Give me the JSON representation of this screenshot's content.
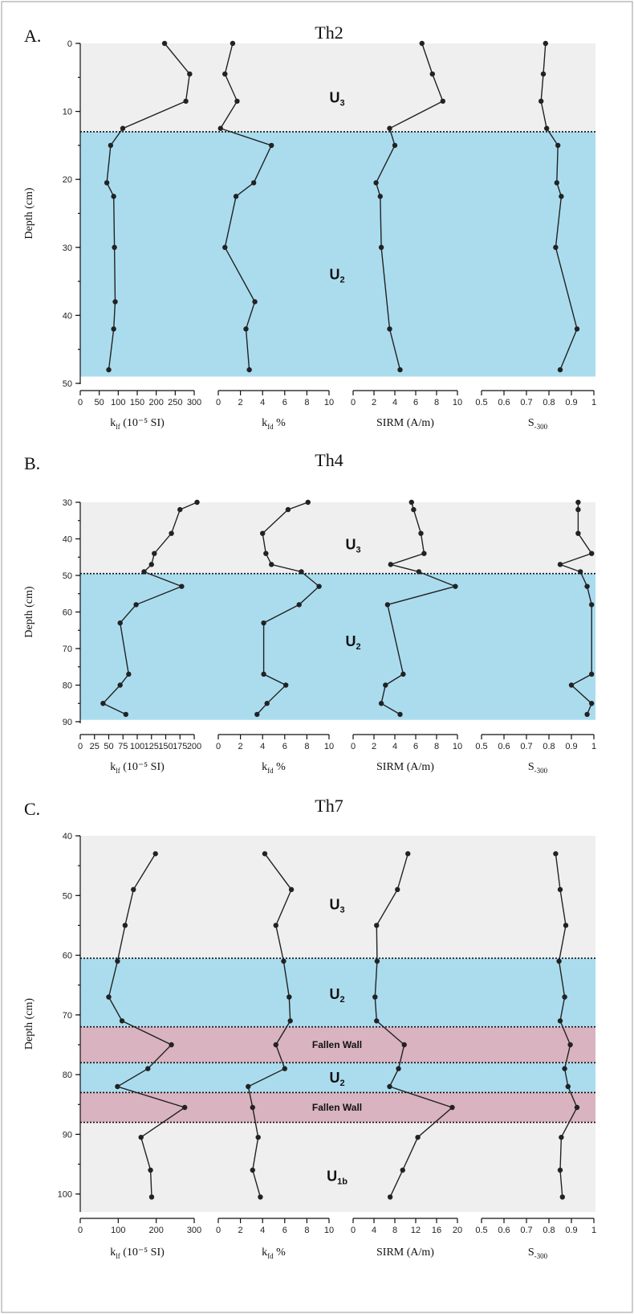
{
  "chart_data": [
    {
      "type": "line",
      "panel": "A.",
      "title": "Th2",
      "ylabel": "Depth (cm)",
      "ylim": [
        0,
        50
      ],
      "yticks": [
        "0",
        "10",
        "20",
        "30",
        "40",
        "50"
      ],
      "units": [
        {
          "label": "U",
          "sub": "3",
          "depth": 8
        },
        {
          "label": "U",
          "sub": "2",
          "depth": 34
        }
      ],
      "bands": [
        {
          "from": 0,
          "to": 13,
          "color": "#efefef"
        },
        {
          "from": 13,
          "to": 49,
          "color": "#aadcee"
        }
      ],
      "boundaries": [
        13
      ],
      "band_labels": [],
      "series": [
        {
          "xlabel": "k",
          "xlabel_sub": "lf",
          "xlabel_tail": " (10⁻⁵ SI)",
          "xlim": [
            0,
            300
          ],
          "xticks": [
            "0",
            "50",
            "100",
            "150",
            "200",
            "250",
            "300"
          ],
          "tick_values": [
            0,
            50,
            100,
            150,
            200,
            250,
            300
          ],
          "depth": [
            0,
            4.5,
            8.5,
            12.5,
            15,
            20.5,
            22.5,
            30,
            38,
            42,
            48
          ],
          "x": [
            222,
            288,
            278,
            112,
            80,
            70,
            88,
            90,
            92,
            88,
            75
          ]
        },
        {
          "xlabel": "k",
          "xlabel_sub": "fd",
          "xlabel_tail": " %",
          "xlim": [
            0,
            10
          ],
          "xticks": [
            "0",
            "2",
            "4",
            "6",
            "8",
            "10"
          ],
          "tick_values": [
            0,
            2,
            4,
            6,
            8,
            10
          ],
          "depth": [
            0,
            4.5,
            8.5,
            12.5,
            15,
            20.5,
            22.5,
            30,
            38,
            42,
            48
          ],
          "x": [
            1.3,
            0.6,
            1.7,
            0.2,
            4.8,
            3.2,
            1.6,
            0.6,
            3.3,
            2.5,
            2.8
          ]
        },
        {
          "xlabel": "SIRM",
          "xlabel_sub": "",
          "xlabel_tail": " (A/m)",
          "xlim": [
            0,
            10
          ],
          "xticks": [
            "0",
            "2",
            "4",
            "6",
            "8",
            "10"
          ],
          "tick_values": [
            0,
            2,
            4,
            6,
            8,
            10
          ],
          "depth": [
            0,
            4.5,
            8.5,
            12.5,
            15,
            20.5,
            22.5,
            30,
            42,
            48
          ],
          "x": [
            6.6,
            7.6,
            8.6,
            3.5,
            4.0,
            2.2,
            2.6,
            2.7,
            3.5,
            4.5
          ]
        },
        {
          "xlabel": "S",
          "xlabel_sub": "-300",
          "xlabel_tail": "",
          "xlim": [
            0.5,
            1
          ],
          "xticks": [
            "0.5",
            "0.6",
            "0.7",
            "0.8",
            "0.9",
            "1"
          ],
          "tick_values": [
            0.5,
            0.6,
            0.7,
            0.8,
            0.9,
            1
          ],
          "depth": [
            0,
            4.5,
            8.5,
            12.5,
            15,
            20.5,
            22.5,
            30,
            42,
            48
          ],
          "x": [
            0.785,
            0.775,
            0.765,
            0.79,
            0.84,
            0.835,
            0.855,
            0.83,
            0.925,
            0.85
          ]
        }
      ]
    },
    {
      "type": "line",
      "panel": "B.",
      "title": "Th4",
      "ylabel": "Depth (cm)",
      "ylim": [
        30,
        90
      ],
      "yticks": [
        "30",
        "40",
        "50",
        "60",
        "70",
        "80",
        "90"
      ],
      "units": [
        {
          "label": "U",
          "sub": "3",
          "depth": 41.5
        },
        {
          "label": "U",
          "sub": "2",
          "depth": 68
        }
      ],
      "bands": [
        {
          "from": 30,
          "to": 49.5,
          "color": "#efefef"
        },
        {
          "from": 49.5,
          "to": 89.5,
          "color": "#aadcee"
        }
      ],
      "boundaries": [
        49.5
      ],
      "band_labels": [],
      "series": [
        {
          "xlabel": "k",
          "xlabel_sub": "lf",
          "xlabel_tail": " (10⁻⁵ SI)",
          "xlim": [
            0,
            200
          ],
          "xticks": [
            "0",
            "25",
            "50",
            "75",
            "100",
            "125",
            "150",
            "175",
            "200"
          ],
          "tick_values": [
            0,
            25,
            50,
            75,
            100,
            125,
            150,
            175,
            200
          ],
          "depth": [
            30,
            32,
            38.5,
            44,
            47,
            49,
            53,
            58,
            63,
            77,
            80,
            85,
            88
          ],
          "x": [
            205,
            175,
            160,
            130,
            125,
            112,
            178,
            98,
            70,
            85,
            70,
            40,
            80
          ]
        },
        {
          "xlabel": "k",
          "xlabel_sub": "fd",
          "xlabel_tail": " %",
          "xlim": [
            0,
            10
          ],
          "xticks": [
            "0",
            "2",
            "4",
            "6",
            "8",
            "10"
          ],
          "tick_values": [
            0,
            2,
            4,
            6,
            8,
            10
          ],
          "depth": [
            30,
            32,
            38.5,
            44,
            47,
            49,
            53,
            58,
            63,
            77,
            80,
            85,
            88
          ],
          "x": [
            8.1,
            6.3,
            4.0,
            4.3,
            4.8,
            7.5,
            9.1,
            7.3,
            4.1,
            4.1,
            6.1,
            4.4,
            3.5
          ]
        },
        {
          "xlabel": "SIRM",
          "xlabel_sub": "",
          "xlabel_tail": " (A/m)",
          "xlim": [
            0,
            10
          ],
          "xticks": [
            "0",
            "2",
            "4",
            "6",
            "8",
            "10"
          ],
          "tick_values": [
            0,
            2,
            4,
            6,
            8,
            10
          ],
          "depth": [
            30,
            32,
            38.5,
            44,
            47,
            49,
            53,
            58,
            77,
            80,
            85,
            88
          ],
          "x": [
            5.6,
            5.8,
            6.5,
            6.8,
            3.6,
            6.3,
            9.8,
            3.3,
            4.8,
            3.1,
            2.7,
            4.5
          ]
        },
        {
          "xlabel": "S",
          "xlabel_sub": "-300",
          "xlabel_tail": "",
          "xlim": [
            0.5,
            1
          ],
          "xticks": [
            "0.5",
            "0.6",
            "0.7",
            "0.8",
            "0.9",
            "1"
          ],
          "tick_values": [
            0.5,
            0.6,
            0.7,
            0.8,
            0.9,
            1
          ],
          "depth": [
            30,
            32,
            38.5,
            44,
            47,
            49,
            53,
            58,
            77,
            80,
            85,
            88
          ],
          "x": [
            0.93,
            0.93,
            0.93,
            0.99,
            0.85,
            0.94,
            0.97,
            0.99,
            0.99,
            0.9,
            0.99,
            0.97
          ]
        }
      ]
    },
    {
      "type": "line",
      "panel": "C.",
      "title": "Th7",
      "ylabel": "Depth (cm)",
      "ylim": [
        40,
        103
      ],
      "yticks": [
        "40",
        "50",
        "60",
        "70",
        "80",
        "90",
        "100"
      ],
      "units": [
        {
          "label": "U",
          "sub": "3",
          "depth": 51.5
        },
        {
          "label": "U",
          "sub": "2",
          "depth": 66.5
        },
        {
          "label": "U",
          "sub": "2",
          "depth": 80.5
        },
        {
          "label": "U",
          "sub": "1b",
          "depth": 97
        }
      ],
      "bands": [
        {
          "from": 40,
          "to": 60.5,
          "color": "#efefef"
        },
        {
          "from": 60.5,
          "to": 72,
          "color": "#aadcee"
        },
        {
          "from": 72,
          "to": 78,
          "color": "#d9b3c0"
        },
        {
          "from": 78,
          "to": 83,
          "color": "#aadcee"
        },
        {
          "from": 83,
          "to": 88,
          "color": "#d9b3c0"
        },
        {
          "from": 88,
          "to": 103,
          "color": "#efefef"
        }
      ],
      "boundaries": [
        60.5,
        72,
        78,
        83,
        88
      ],
      "band_labels": [
        {
          "text": "Fallen Wall",
          "depth": 75
        },
        {
          "text": "Fallen Wall",
          "depth": 85.5
        }
      ],
      "series": [
        {
          "xlabel": "k",
          "xlabel_sub": "lf",
          "xlabel_tail": " (10⁻⁵ SI)",
          "xlim": [
            0,
            300
          ],
          "xticks": [
            "0",
            "100",
            "200",
            "300"
          ],
          "tick_values": [
            0,
            100,
            200,
            300
          ],
          "depth": [
            43,
            49,
            55,
            61,
            67,
            71,
            75,
            79,
            82,
            85.5,
            90.5,
            96,
            100.5
          ],
          "x": [
            198,
            140,
            118,
            98,
            75,
            110,
            240,
            178,
            98,
            275,
            160,
            185,
            188
          ]
        },
        {
          "xlabel": "k",
          "xlabel_sub": "fd",
          "xlabel_tail": " %",
          "xlim": [
            0,
            10
          ],
          "xticks": [
            "0",
            "2",
            "4",
            "6",
            "8",
            "10"
          ],
          "tick_values": [
            0,
            2,
            4,
            6,
            8,
            10
          ],
          "depth": [
            43,
            49,
            55,
            61,
            67,
            71,
            75,
            79,
            82,
            85.5,
            90.5,
            96,
            100.5
          ],
          "x": [
            4.2,
            6.6,
            5.2,
            5.9,
            6.4,
            6.5,
            5.2,
            6.0,
            2.7,
            3.1,
            3.6,
            3.1,
            3.8
          ]
        },
        {
          "xlabel": "SIRM",
          "xlabel_sub": "",
          "xlabel_tail": " (A/m)",
          "xlim": [
            0,
            20
          ],
          "xticks": [
            "0",
            "4",
            "8",
            "12",
            "16",
            "20"
          ],
          "tick_values": [
            0,
            4,
            8,
            12,
            16,
            20
          ],
          "depth": [
            43,
            49,
            55,
            61,
            67,
            71,
            75,
            79,
            82,
            85.5,
            90.5,
            96,
            100.5
          ],
          "x": [
            10.5,
            8.5,
            4.5,
            4.6,
            4.2,
            4.5,
            9.8,
            8.7,
            7.0,
            19.0,
            12.4,
            9.5,
            7.1
          ]
        },
        {
          "xlabel": "S",
          "xlabel_sub": "-300",
          "xlabel_tail": "",
          "xlim": [
            0.5,
            1
          ],
          "xticks": [
            "0.5",
            "0.6",
            "0.7",
            "0.8",
            "0.9",
            "1"
          ],
          "tick_values": [
            0.5,
            0.6,
            0.7,
            0.8,
            0.9,
            1
          ],
          "depth": [
            43,
            49,
            55,
            61,
            67,
            71,
            75,
            79,
            82,
            85.5,
            90.5,
            96,
            100.5
          ],
          "x": [
            0.83,
            0.85,
            0.875,
            0.845,
            0.87,
            0.85,
            0.895,
            0.87,
            0.885,
            0.925,
            0.855,
            0.85,
            0.86
          ]
        }
      ]
    }
  ]
}
